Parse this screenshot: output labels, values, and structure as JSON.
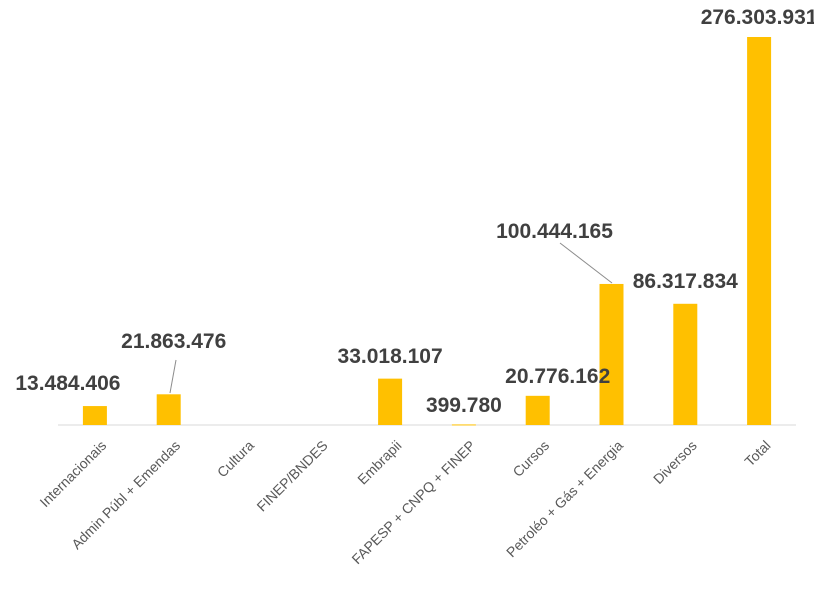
{
  "chart_data": {
    "type": "bar",
    "categories": [
      "Internacionais",
      "Admin Públ + Emendas",
      "Cultura",
      "FINEP/BNDES",
      "Embrapii",
      "FAPESP + CNPQ + FINEP",
      "Cursos",
      "Petroléo + Gás + Energia",
      "Diversos",
      "Total"
    ],
    "values": [
      13484406,
      21863476,
      0,
      0,
      33018107,
      399780,
      20776162,
      100444165,
      86317834,
      276303931
    ],
    "data_labels": [
      "13.484.406",
      "21.863.476",
      "",
      "",
      "33.018.107",
      "399.780",
      "20.776.162",
      "100.444.165",
      "86.317.834",
      "276.303.931"
    ],
    "ylim": [
      0,
      276303931
    ],
    "grid": false,
    "legend": "none",
    "bar_color": "#FFC000",
    "title": "",
    "xlabel": "",
    "ylabel": ""
  }
}
